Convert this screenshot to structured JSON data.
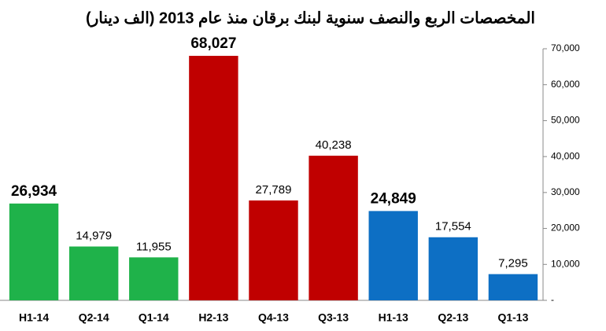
{
  "chart_data": {
    "type": "bar",
    "title": "المخصصات الربع والنصف سنوية لبنك برقان منذ عام 2013 (الف دينار)",
    "categories": [
      "H1-14",
      "Q2-14",
      "Q1-14",
      "H2-13",
      "Q4-13",
      "Q3-13",
      "H1-13",
      "Q2-13",
      "Q1-13"
    ],
    "values": [
      26934,
      14979,
      11955,
      68027,
      27789,
      40238,
      24849,
      17554,
      7295
    ],
    "value_labels": [
      "26,934",
      "14,979",
      "11,955",
      "68,027",
      "27,789",
      "40,238",
      "24,849",
      "17,554",
      "7,295"
    ],
    "value_label_bold": [
      true,
      false,
      false,
      true,
      false,
      false,
      true,
      false,
      false
    ],
    "colors": [
      "#1fb24a",
      "#1fb24a",
      "#1fb24a",
      "#c00000",
      "#c00000",
      "#c00000",
      "#0d6fc4",
      "#0d6fc4",
      "#0d6fc4"
    ],
    "ylim": [
      0,
      70000
    ],
    "yticks": [
      {
        "value": 0,
        "label": "-"
      },
      {
        "value": 10000,
        "label": "10,000"
      },
      {
        "value": 20000,
        "label": "20,000"
      },
      {
        "value": 30000,
        "label": "30,000"
      },
      {
        "value": 40000,
        "label": "40,000"
      },
      {
        "value": 50000,
        "label": "50,000"
      },
      {
        "value": 60000,
        "label": "60,000"
      },
      {
        "value": 70000,
        "label": "70,000"
      }
    ],
    "y_axis_side": "right",
    "grid": false
  }
}
